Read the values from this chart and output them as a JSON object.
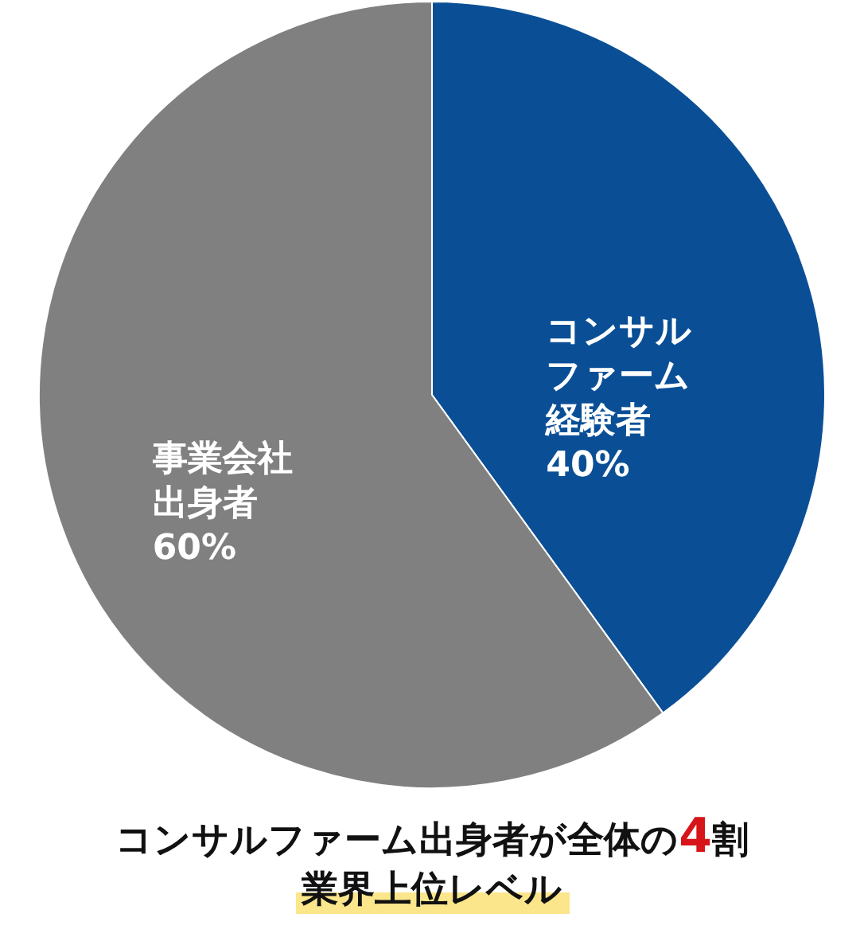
{
  "chart_data": {
    "type": "pie",
    "title": "コンサルファーム出身者が全体の4割",
    "subtitle": "業界上位レベル",
    "categories": [
      "コンサルファーム経験者",
      "事業会社出身者"
    ],
    "values": [
      40,
      60
    ],
    "colors": [
      "#0a4f96",
      "#808080"
    ],
    "value_labels": [
      "40%",
      "60%"
    ]
  }
}
